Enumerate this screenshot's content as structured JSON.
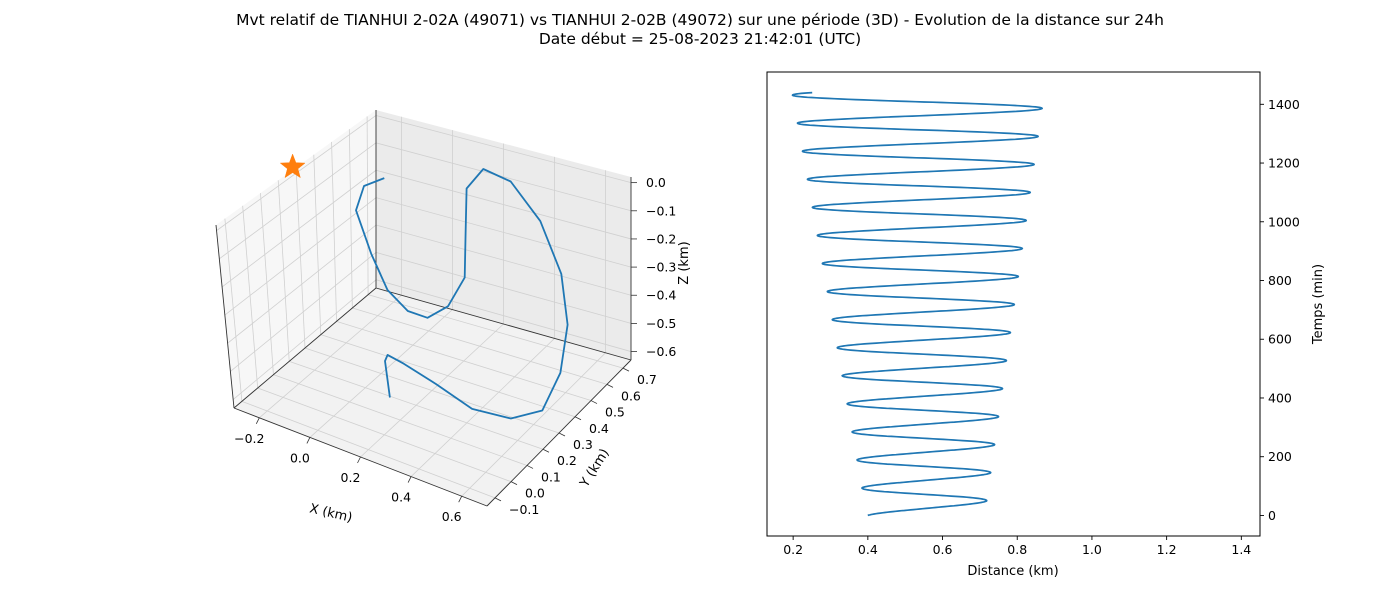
{
  "figure": {
    "title_line1": "Mvt relatif de TIANHUI 2-02A (49071) vs TIANHUI 2-02B (49072) sur une période (3D) - Evolution de la distance sur 24h",
    "title_line2": "Date début = 25-08-2023 21:42:01 (UTC)"
  },
  "colors": {
    "line": "#1f77b4",
    "marker": "#ff7f0e",
    "pane": "#f2f2f2",
    "grid": "#d0d0d0"
  },
  "chart_data": [
    {
      "type": "line",
      "projection": "3d",
      "xlabel": "X (km)",
      "ylabel": "Y (km)",
      "zlabel": "Z (km)",
      "x_ticks": [
        "−0.2",
        "0.0",
        "0.2",
        "0.4",
        "0.6"
      ],
      "y_ticks": [
        "−0.1",
        "0.0",
        "0.1",
        "0.2",
        "0.3",
        "0.4",
        "0.5",
        "0.6",
        "0.7"
      ],
      "z_ticks": [
        "0.0",
        "−0.1",
        "−0.2",
        "−0.3",
        "−0.4",
        "−0.5",
        "−0.6"
      ],
      "xlim": [
        -0.3,
        0.7
      ],
      "ylim": [
        -0.15,
        0.75
      ],
      "zlim": [
        -0.63,
        0.02
      ],
      "grid": true,
      "marker": {
        "shape": "star",
        "x": -0.31,
        "y": 0.32,
        "z": 0.0
      },
      "series": [
        {
          "x": [
            0.11,
            0.14,
            0.22,
            0.31,
            0.4,
            0.47,
            0.55,
            0.61,
            0.62,
            0.6,
            0.54,
            0.43,
            0.3,
            0.19,
            0.13,
            0.14,
            0.15,
            0.1,
            0.03,
            -0.04,
            -0.11,
            -0.16,
            -0.21,
            -0.18,
            -0.12
          ],
          "y": [
            0.18,
            0.12,
            0.02,
            -0.02,
            0.03,
            0.13,
            0.24,
            0.34,
            0.44,
            0.52,
            0.58,
            0.63,
            0.66,
            0.67,
            0.66,
            0.63,
            0.6,
            0.57,
            0.55,
            0.54,
            0.53,
            0.52,
            0.52,
            0.53,
            0.56
          ],
          "z": [
            -0.62,
            -0.45,
            -0.35,
            -0.33,
            -0.4,
            -0.52,
            -0.59,
            -0.6,
            -0.52,
            -0.4,
            -0.27,
            -0.14,
            -0.05,
            -0.04,
            -0.12,
            -0.26,
            -0.4,
            -0.5,
            -0.55,
            -0.54,
            -0.48,
            -0.36,
            -0.22,
            -0.13,
            -0.1
          ]
        }
      ]
    },
    {
      "type": "line",
      "xlabel": "Distance (km)",
      "ylabel": "Temps (min)",
      "xlim": [
        0.13,
        1.45
      ],
      "ylim": [
        -70,
        1510
      ],
      "x_ticks": [
        0.2,
        0.4,
        0.6,
        0.8,
        1.0,
        1.2,
        1.4
      ],
      "y_ticks": [
        0,
        200,
        400,
        600,
        800,
        1000,
        1200,
        1400
      ],
      "grid": false,
      "series": [
        {
          "t_min": 0,
          "t_max": 1440,
          "period_min": 95.5,
          "base_km": 0.4,
          "base_growth_km_per_min": -0.00014,
          "amp_km": 0.31,
          "amp_growth_km_per_min": 0.000252
        }
      ]
    }
  ]
}
